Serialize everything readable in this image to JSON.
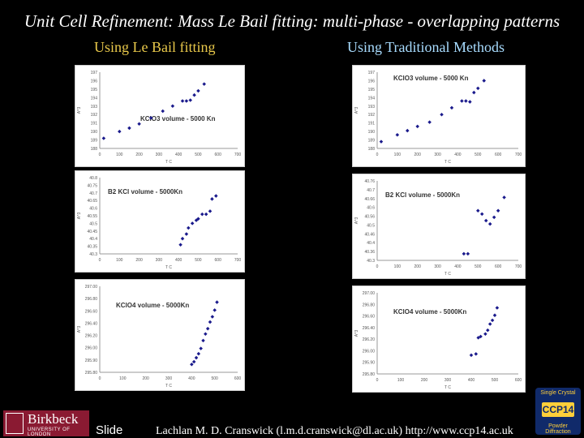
{
  "slide": {
    "title": "Unit Cell Refinement: Mass Le Bail fitting: multi-phase - overlapping patterns",
    "left_heading": "Using Le Bail fitting",
    "right_heading": "Using Traditional Methods",
    "footer_slide": "Slide",
    "footer_credit": "Lachlan M. D. Cranswick (l.m.d.cranswick@dl.ac.uk) http://www.ccp14.ac.uk",
    "logo_name": "Birkbeck",
    "logo_sub": "UNIVERSITY OF LONDON",
    "ccp_top": "Single Crystal",
    "ccp_mid": "CCP14",
    "ccp_bot": "Powder Diffraction",
    "marker_color": "#1a1a8c"
  },
  "chart_data": [
    {
      "id": "lb-kclo3",
      "type": "scatter",
      "title": "KClO3 volume - 5000 Kn",
      "xlabel": "T C",
      "ylabel": "A^3",
      "xlim": [
        0,
        700
      ],
      "ylim": [
        188,
        197
      ],
      "xticks": [
        "0",
        "100",
        "200",
        "300",
        "400",
        "500",
        "600",
        "700"
      ],
      "yticks": [
        "188",
        "189",
        "190",
        "191",
        "192",
        "193",
        "194",
        "195",
        "196",
        "197"
      ],
      "x": [
        20,
        100,
        150,
        200,
        260,
        320,
        370,
        420,
        440,
        460,
        480,
        500,
        530
      ],
      "y": [
        189.2,
        190.0,
        190.4,
        190.9,
        191.6,
        192.4,
        193.0,
        193.6,
        193.6,
        193.7,
        194.3,
        194.8,
        195.6
      ]
    },
    {
      "id": "lb-kcl",
      "type": "scatter",
      "title": "B2 KCl volume - 5000Kn",
      "xlabel": "T C",
      "ylabel": "A^3",
      "xlim": [
        0,
        700
      ],
      "ylim": [
        40.3,
        40.8
      ],
      "xticks": [
        "0",
        "100",
        "200",
        "300",
        "400",
        "500",
        "600",
        "700"
      ],
      "yticks": [
        "40.3",
        "40.35",
        "40.4",
        "40.45",
        "40.5",
        "40.55",
        "40.6",
        "40.65",
        "40.7",
        "40.75",
        "40.8"
      ],
      "x": [
        410,
        420,
        440,
        450,
        470,
        490,
        500,
        520,
        540,
        560,
        570,
        590
      ],
      "y": [
        40.36,
        40.4,
        40.43,
        40.47,
        40.5,
        40.52,
        40.53,
        40.56,
        40.56,
        40.58,
        40.66,
        40.68
      ]
    },
    {
      "id": "lb-kclo4",
      "type": "scatter",
      "title": "KClO4 volume - 5000Kn",
      "xlabel": "T C",
      "ylabel": "A^3",
      "xlim": [
        0,
        600
      ],
      "ylim": [
        295.8,
        297.1
      ],
      "xticks": [
        "0",
        "100",
        "200",
        "300",
        "400",
        "500",
        "600"
      ],
      "yticks": [
        "295.80",
        "295.90",
        "296.00",
        "296.20",
        "296.40",
        "296.60",
        "296.80",
        "297.00"
      ],
      "x": [
        400,
        410,
        420,
        430,
        440,
        450,
        460,
        470,
        480,
        490,
        500,
        510
      ],
      "y": [
        295.92,
        295.96,
        296.02,
        296.08,
        296.16,
        296.28,
        296.38,
        296.46,
        296.56,
        296.64,
        296.74,
        296.86
      ]
    },
    {
      "id": "tr-kclo3",
      "type": "scatter",
      "title": "KClO3 volume - 5000 Kn",
      "xlabel": "T C",
      "ylabel": "A^3",
      "xlim": [
        0,
        700
      ],
      "ylim": [
        188,
        197
      ],
      "xticks": [
        "0",
        "100",
        "200",
        "300",
        "400",
        "500",
        "600",
        "700"
      ],
      "yticks": [
        "188",
        "189",
        "190",
        "191",
        "192",
        "193",
        "194",
        "195",
        "196",
        "197"
      ],
      "x": [
        20,
        100,
        150,
        200,
        260,
        320,
        370,
        420,
        440,
        460,
        480,
        500,
        530
      ],
      "y": [
        188.8,
        189.6,
        190.1,
        190.6,
        191.1,
        192.0,
        192.8,
        193.6,
        193.6,
        193.5,
        194.6,
        195.1,
        196.0
      ]
    },
    {
      "id": "tr-kcl",
      "type": "scatter",
      "title": "B2 KCl volume - 5000Kn",
      "xlabel": "T C",
      "ylabel": "A^3",
      "xlim": [
        0,
        700
      ],
      "ylim": [
        40.3,
        40.78
      ],
      "xticks": [
        "0",
        "100",
        "200",
        "300",
        "400",
        "500",
        "600",
        "700"
      ],
      "yticks": [
        "40.3",
        "40.36",
        "40.4",
        "40.46",
        "40.5",
        "40.56",
        "40.6",
        "40.66",
        "40.7",
        "40.76"
      ],
      "x": [
        430,
        450,
        500,
        520,
        540,
        560,
        580,
        600,
        630
      ],
      "y": [
        40.34,
        40.34,
        40.6,
        40.58,
        40.54,
        40.52,
        40.56,
        40.6,
        40.68
      ]
    },
    {
      "id": "tr-kclo4",
      "type": "scatter",
      "title": "KClO4 volume - 5000Kn",
      "xlabel": "T C",
      "ylabel": "A^3",
      "xlim": [
        0,
        600
      ],
      "ylim": [
        295.8,
        297.1
      ],
      "xticks": [
        "0",
        "100",
        "200",
        "300",
        "400",
        "500",
        "600"
      ],
      "yticks": [
        "295.80",
        "295.90",
        "296.00",
        "296.20",
        "296.40",
        "296.60",
        "296.80",
        "297.00"
      ],
      "x": [
        400,
        420,
        430,
        440,
        460,
        470,
        480,
        490,
        500,
        510
      ],
      "y": [
        296.1,
        296.12,
        296.38,
        296.4,
        296.44,
        296.5,
        296.6,
        296.66,
        296.74,
        296.86
      ]
    }
  ]
}
